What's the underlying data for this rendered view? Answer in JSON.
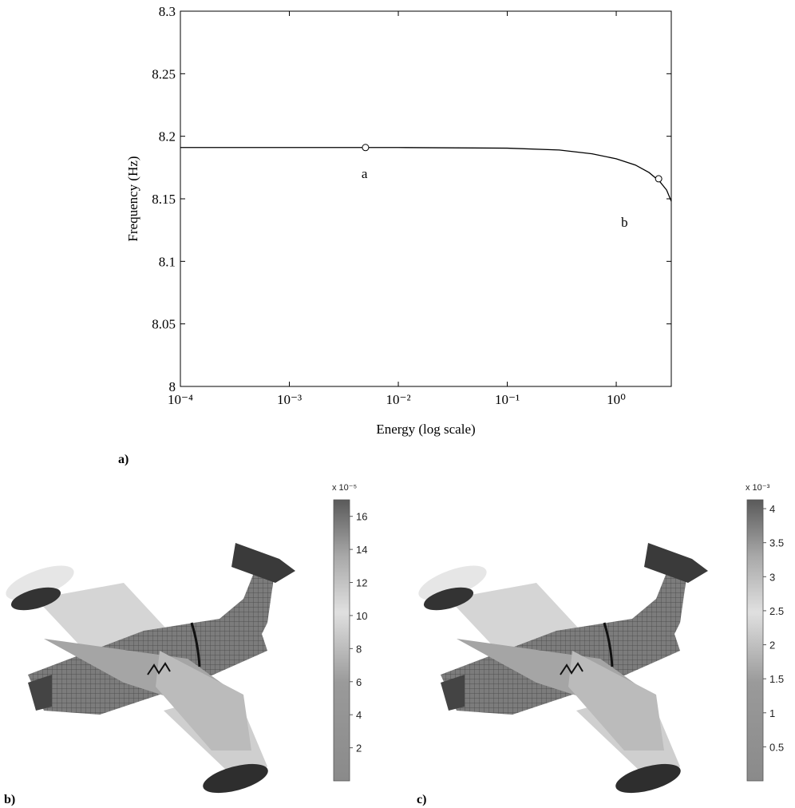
{
  "chart_data": {
    "type": "line",
    "x": [
      0.0001,
      0.001,
      0.01,
      0.1,
      0.3,
      0.6,
      1,
      1.5,
      2,
      2.5,
      2.9,
      3.2
    ],
    "values": [
      8.191,
      8.191,
      8.191,
      8.1905,
      8.189,
      8.186,
      8.182,
      8.177,
      8.171,
      8.164,
      8.157,
      8.148
    ],
    "color": "#000000",
    "markers": {
      "x": [
        0.005,
        2.45
      ],
      "values": [
        8.191,
        8.166
      ]
    },
    "annotations": [
      "a",
      "b"
    ],
    "xlabel": "Energy (log scale)",
    "ylabel": "Frequency (Hz)",
    "xscale": "log",
    "xlim": [
      0.0001,
      3.2
    ],
    "ylim": [
      8,
      8.3
    ],
    "xticks": [
      {
        "value": 0.0001,
        "label": "10⁻⁴"
      },
      {
        "value": 0.001,
        "label": "10⁻³"
      },
      {
        "value": 0.01,
        "label": "10⁻²"
      },
      {
        "value": 0.1,
        "label": "10⁻¹"
      },
      {
        "value": 1,
        "label": "10⁰"
      }
    ],
    "yticks": [
      8,
      8.05,
      8.1,
      8.15,
      8.2,
      8.25,
      8.3
    ],
    "grid": false
  },
  "figure_labels": [
    "a)",
    "b)",
    "c)"
  ],
  "colorbars": [
    {
      "exponent_label": "x 10⁻⁵",
      "clim": [
        0,
        17
      ],
      "ticks": [
        2,
        4,
        6,
        8,
        10,
        12,
        14,
        16
      ]
    },
    {
      "exponent_label": "x 10⁻³",
      "clim": [
        0,
        4.13
      ],
      "ticks": [
        0.5,
        1,
        1.5,
        2,
        2.5,
        3,
        3.5,
        4
      ]
    }
  ]
}
